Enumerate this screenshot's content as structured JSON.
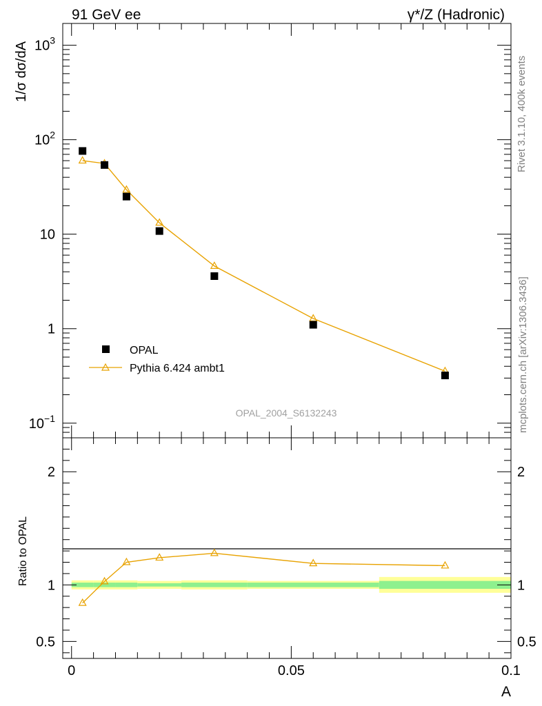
{
  "header": {
    "left_title": "91 GeV ee",
    "right_title": "γ*/Z (Hadronic)"
  },
  "side_text": {
    "top": "Rivet 3.1.10,  400k events",
    "bottom": "mcplots.cern.ch [arXiv:1306.3436]"
  },
  "watermark": "OPAL_2004_S6132243",
  "colors": {
    "data": "#000000",
    "mc": "#e8a200",
    "band_inner": "#8ef08e",
    "band_outer": "#ffff99"
  },
  "chart_data": [
    {
      "type": "scatter",
      "panel": "main",
      "ylabel": "1/σ dσ/dA",
      "yscale": "log",
      "ylim": [
        0.07,
        1700
      ],
      "xlim": [
        -0.002,
        0.1
      ],
      "yticks": [
        {
          "value": 0.1,
          "base": "10",
          "exp": "−1"
        },
        {
          "value": 1,
          "label": "1"
        },
        {
          "value": 10,
          "label": "10"
        },
        {
          "value": 100,
          "base": "10",
          "exp": "2"
        },
        {
          "value": 1000,
          "base": "10",
          "exp": "3"
        }
      ],
      "legend": {
        "position": "bottom-left"
      },
      "series": [
        {
          "name": "OPAL",
          "style": "square",
          "x": [
            0.0025,
            0.0075,
            0.0125,
            0.02,
            0.0325,
            0.055,
            0.085
          ],
          "y": [
            76,
            54,
            25,
            10.8,
            3.6,
            1.1,
            0.32
          ]
        },
        {
          "name": "Pythia 6.424 ambt1",
          "style": "line-triangle",
          "x": [
            0.0025,
            0.0075,
            0.0125,
            0.02,
            0.0325,
            0.055,
            0.085
          ],
          "y": [
            60,
            56,
            29.5,
            13.2,
            4.6,
            1.28,
            0.355
          ]
        }
      ]
    },
    {
      "type": "line",
      "panel": "ratio",
      "ylabel": "Ratio to OPAL",
      "xlabel": "A",
      "ylim": [
        0.35,
        2.3
      ],
      "xlim": [
        -0.002,
        0.1
      ],
      "xticks": [
        {
          "value": 0,
          "label": "0"
        },
        {
          "value": 0.05,
          "label": "0.05"
        },
        {
          "value": 0.1,
          "label": "0.1"
        }
      ],
      "yticks": [
        {
          "value": 0.5,
          "label": "0.5"
        },
        {
          "value": 1,
          "label": "1"
        },
        {
          "value": 2,
          "label": "2"
        }
      ],
      "uncertainty_bins": [
        {
          "x0": 0,
          "x1": 0.005,
          "inner": [
            0.98,
            1.02
          ],
          "outer": [
            0.96,
            1.04
          ]
        },
        {
          "x0": 0.005,
          "x1": 0.01,
          "inner": [
            0.98,
            1.02
          ],
          "outer": [
            0.96,
            1.04
          ]
        },
        {
          "x0": 0.01,
          "x1": 0.015,
          "inner": [
            0.98,
            1.02
          ],
          "outer": [
            0.96,
            1.04
          ]
        },
        {
          "x0": 0.015,
          "x1": 0.025,
          "inner": [
            0.985,
            1.015
          ],
          "outer": [
            0.965,
            1.035
          ]
        },
        {
          "x0": 0.025,
          "x1": 0.04,
          "inner": [
            0.98,
            1.02
          ],
          "outer": [
            0.96,
            1.04
          ]
        },
        {
          "x0": 0.04,
          "x1": 0.07,
          "inner": [
            0.98,
            1.02
          ],
          "outer": [
            0.965,
            1.035
          ]
        },
        {
          "x0": 0.07,
          "x1": 0.1,
          "inner": [
            0.965,
            1.035
          ],
          "outer": [
            0.93,
            1.07
          ]
        }
      ],
      "series": [
        {
          "name": "Pythia 6.424 ambt1",
          "x": [
            0.0025,
            0.0075,
            0.0125,
            0.02,
            0.0325,
            0.055,
            0.085
          ],
          "y": [
            0.84,
            1.03,
            1.2,
            1.24,
            1.28,
            1.19,
            1.17
          ]
        }
      ]
    }
  ]
}
